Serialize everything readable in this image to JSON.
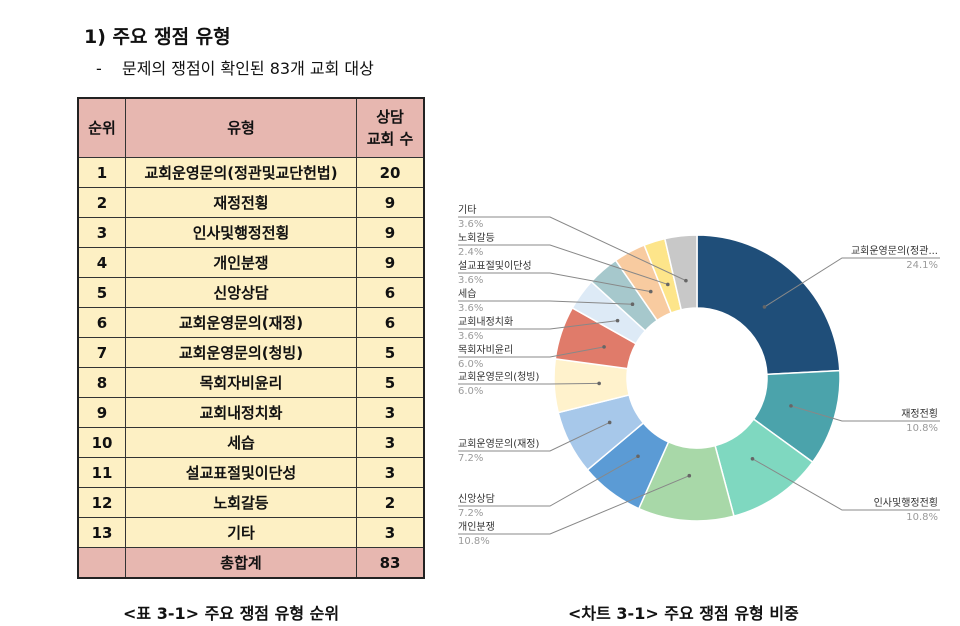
{
  "heading": "1)  주요 쟁점 유형",
  "subheading": {
    "bullet": "-",
    "text": "문제의 쟁점이 확인된 83개 교회 대상"
  },
  "table": {
    "headers": {
      "rank": "순위",
      "type": "유형",
      "count_line1": "상담",
      "count_line2": "교회 수"
    },
    "rows": [
      {
        "rank": "1",
        "type": "교회운영문의(정관및교단헌법)",
        "count": "20"
      },
      {
        "rank": "2",
        "type": "재정전횡",
        "count": "9"
      },
      {
        "rank": "3",
        "type": "인사및행정전횡",
        "count": "9"
      },
      {
        "rank": "4",
        "type": "개인분쟁",
        "count": "9"
      },
      {
        "rank": "5",
        "type": "신앙상담",
        "count": "6"
      },
      {
        "rank": "6",
        "type": "교회운영문의(재정)",
        "count": "6"
      },
      {
        "rank": "7",
        "type": "교회운영문의(청빙)",
        "count": "5"
      },
      {
        "rank": "8",
        "type": "목회자비윤리",
        "count": "5"
      },
      {
        "rank": "9",
        "type": "교회내정치화",
        "count": "3"
      },
      {
        "rank": "10",
        "type": "세습",
        "count": "3"
      },
      {
        "rank": "11",
        "type": "설교표절및이단성",
        "count": "3"
      },
      {
        "rank": "12",
        "type": "노회갈등",
        "count": "2"
      },
      {
        "rank": "13",
        "type": "기타",
        "count": "3"
      }
    ],
    "total": {
      "label": "총합계",
      "count": "83"
    }
  },
  "caption_table": "<표 3-1> 주요 쟁점 유형 순위",
  "caption_chart": "<차트 3-1> 주요 쟁점 유형 비중",
  "chart_data": {
    "type": "pie",
    "donut": true,
    "categories": [
      "교회운영문의(정관...",
      "재정전횡",
      "인사및행정전횡",
      "개인분쟁",
      "신앙상담",
      "교회운영문의(재정)",
      "교회운영문의(청빙)",
      "목회자비윤리",
      "교회내정치화",
      "세습",
      "설교표절및이단성",
      "노회갈등",
      "기타"
    ],
    "values": [
      24.1,
      10.8,
      10.8,
      10.8,
      7.2,
      7.2,
      6.0,
      6.0,
      3.6,
      3.6,
      3.6,
      2.4,
      3.6
    ],
    "value_labels": [
      "24.1%",
      "10.8%",
      "10.8%",
      "10.8%",
      "7.2%",
      "7.2%",
      "6.0%",
      "6.0%",
      "3.6%",
      "3.6%",
      "3.6%",
      "2.4%",
      "3.6%"
    ],
    "colors": [
      "#1f4e79",
      "#4ba3ab",
      "#7fd8c0",
      "#a8d8a8",
      "#5b9bd5",
      "#a7c8ea",
      "#fff2cc",
      "#e07b6a",
      "#ddeaf6",
      "#a6c8cc",
      "#f8cba0",
      "#fde58a",
      "#c8c8c8"
    ]
  }
}
